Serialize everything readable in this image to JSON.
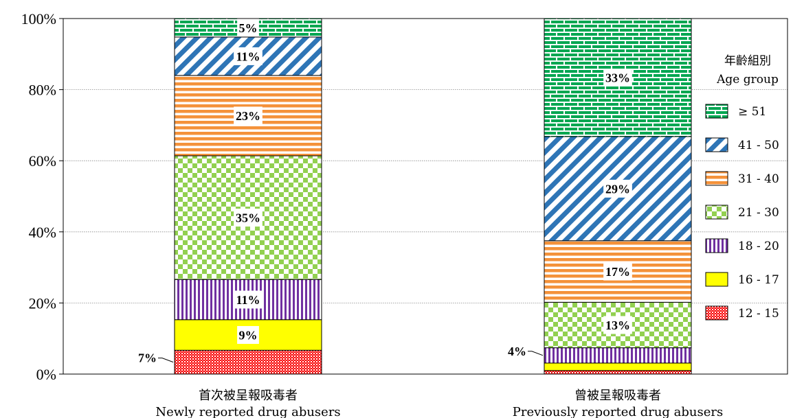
{
  "chart_data": {
    "type": "bar",
    "stacked": true,
    "ylim": [
      0,
      100
    ],
    "yticks": [
      "0%",
      "20%",
      "40%",
      "60%",
      "80%",
      "100%"
    ],
    "grid": true,
    "legend_position": "right",
    "categories": [
      {
        "zh": "首次被呈報吸毒者",
        "en": "Newly reported drug abusers"
      },
      {
        "zh": "曾被呈報吸毒者",
        "en": "Previously reported drug abusers"
      }
    ],
    "legend_title": {
      "zh": "年齡組別",
      "en": "Age group"
    },
    "series": [
      {
        "name": "12 - 15",
        "values": [
          6.7,
          1.0
        ],
        "labels": [
          "7%",
          ""
        ],
        "callout_index": [
          0
        ],
        "color": "#ff0000",
        "pattern": "crosshatch"
      },
      {
        "name": "16 - 17",
        "values": [
          8.6,
          2.1
        ],
        "labels": [
          "9%",
          ""
        ],
        "color": "#ffff00",
        "pattern": "solid"
      },
      {
        "name": "18 - 20",
        "values": [
          11.3,
          4.3
        ],
        "labels": [
          "11%",
          "4%"
        ],
        "callout_index": [
          1
        ],
        "color": "#7030a0",
        "pattern": "vertical"
      },
      {
        "name": "21 - 30",
        "values": [
          34.8,
          12.8
        ],
        "labels": [
          "35%",
          "13%"
        ],
        "color": "#92d050",
        "pattern": "checker"
      },
      {
        "name": "31 - 40",
        "values": [
          22.6,
          17.3
        ],
        "labels": [
          "23%",
          "17%"
        ],
        "color": "#f4923a",
        "pattern": "horizontal"
      },
      {
        "name": "41 - 50",
        "values": [
          10.8,
          29.3
        ],
        "labels": [
          "11%",
          "29%"
        ],
        "color": "#2e75b6",
        "pattern": "diagonal"
      },
      {
        "name": "≥ 51",
        "values": [
          5.2,
          33.2
        ],
        "labels": [
          "5%",
          "33%"
        ],
        "color": "#00a651",
        "pattern": "brick"
      }
    ]
  }
}
